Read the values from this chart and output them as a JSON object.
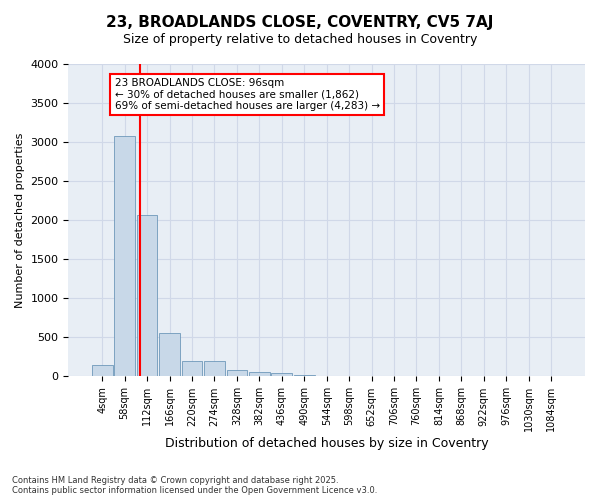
{
  "title_line1": "23, BROADLANDS CLOSE, COVENTRY, CV5 7AJ",
  "title_line2": "Size of property relative to detached houses in Coventry",
  "xlabel": "Distribution of detached houses by size in Coventry",
  "ylabel": "Number of detached properties",
  "annotation_text": "23 BROADLANDS CLOSE: 96sqm\n← 30% of detached houses are smaller (1,862)\n69% of semi-detached houses are larger (4,283) →",
  "footer_line1": "Contains HM Land Registry data © Crown copyright and database right 2025.",
  "footer_line2": "Contains public sector information licensed under the Open Government Licence v3.0.",
  "bin_labels": [
    "4sqm",
    "58sqm",
    "112sqm",
    "166sqm",
    "220sqm",
    "274sqm",
    "328sqm",
    "382sqm",
    "436sqm",
    "490sqm",
    "544sqm",
    "598sqm",
    "652sqm",
    "706sqm",
    "760sqm",
    "814sqm",
    "868sqm",
    "922sqm",
    "976sqm",
    "1030sqm",
    "1084sqm"
  ],
  "bar_values": [
    150,
    3080,
    2070,
    560,
    200,
    200,
    80,
    60,
    50,
    20,
    0,
    0,
    0,
    0,
    0,
    0,
    0,
    0,
    0,
    0,
    0
  ],
  "bar_color": "#c8d8e8",
  "bar_edge_color": "#5a8ab0",
  "grid_color": "#d0d8e8",
  "bg_color": "#e8eef5",
  "vline_color": "red",
  "ylim": [
    0,
    4000
  ],
  "yticks": [
    0,
    500,
    1000,
    1500,
    2000,
    2500,
    3000,
    3500,
    4000
  ],
  "annotation_box_edgecolor": "red"
}
